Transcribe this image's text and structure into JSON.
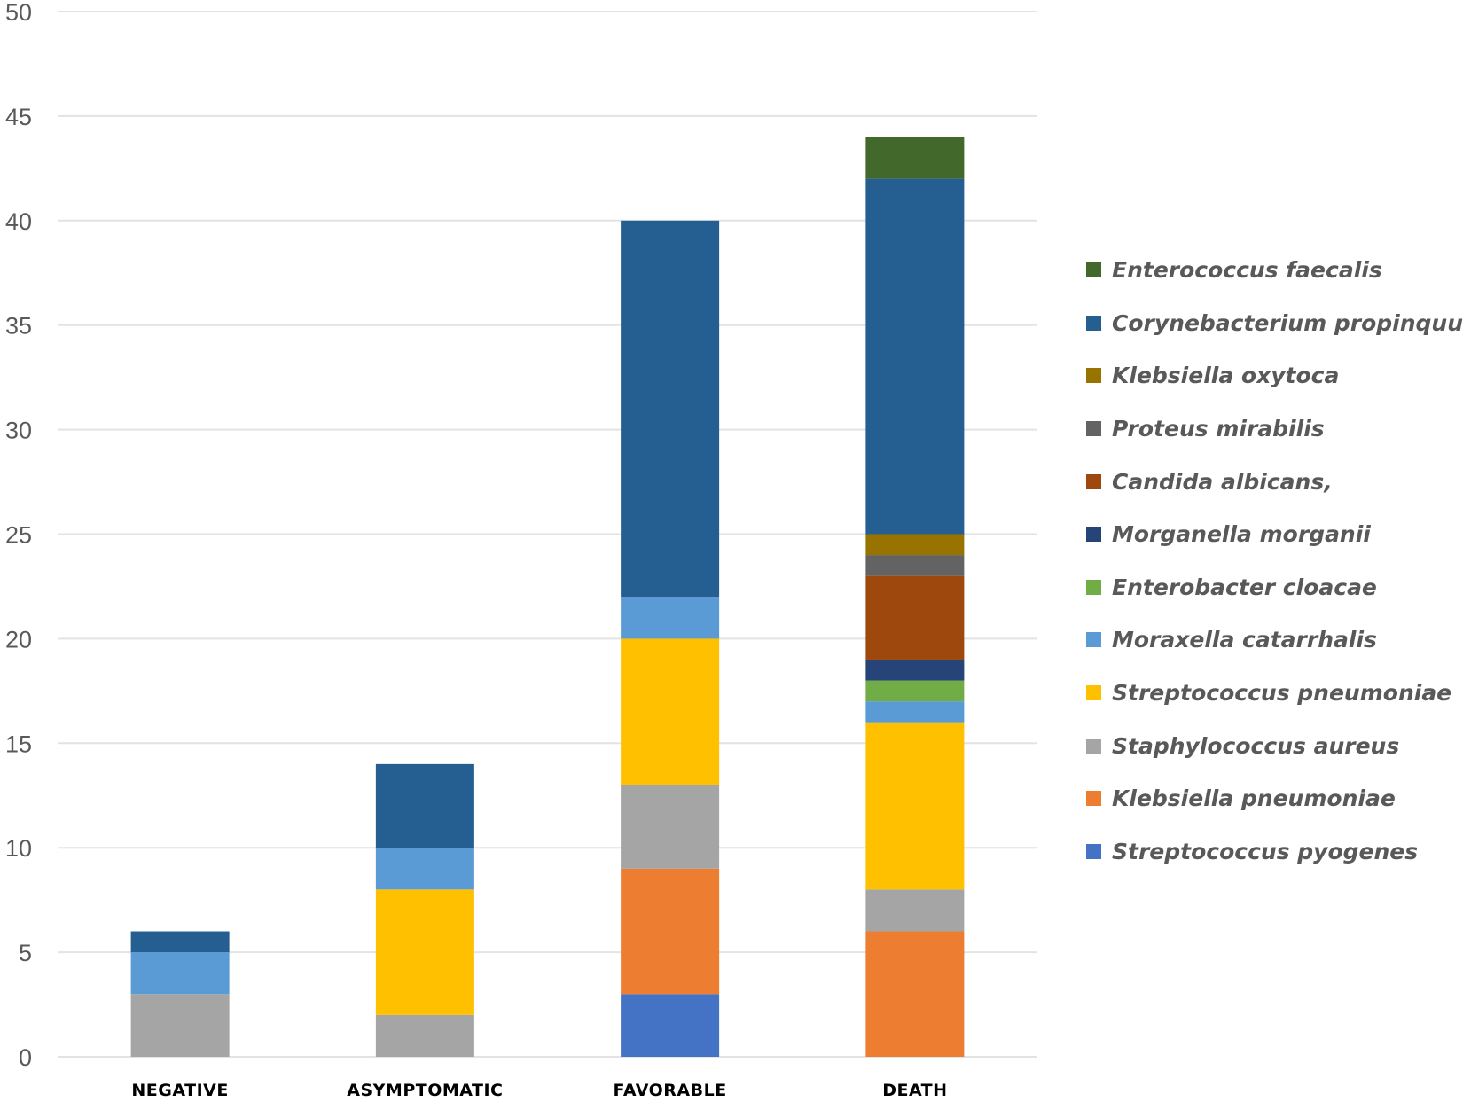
{
  "chart_data": {
    "type": "bar",
    "stacked": true,
    "title": "",
    "xlabel": "",
    "ylabel": "",
    "ylim": [
      0,
      50
    ],
    "yticks": [
      0,
      5,
      10,
      15,
      20,
      25,
      30,
      35,
      40,
      45,
      50
    ],
    "grid": true,
    "legend_position": "right",
    "categories": [
      "NEGATIVE",
      "ASYMPTOMATIC",
      "FAVORABLE",
      "DEATH"
    ],
    "series": [
      {
        "name": "Streptococcus pyogenes",
        "color": "#4472C4",
        "values": [
          0,
          0,
          3,
          0
        ]
      },
      {
        "name": "Klebsiella pneumoniae",
        "color": "#ED7D31",
        "values": [
          0,
          0,
          6,
          6
        ]
      },
      {
        "name": "Staphylococcus aureus",
        "color": "#A5A5A5",
        "values": [
          3,
          2,
          4,
          2
        ]
      },
      {
        "name": "Streptococcus pneumoniae",
        "color": "#FFC000",
        "values": [
          0,
          6,
          7,
          8
        ]
      },
      {
        "name": "Moraxella catarrhalis",
        "color": "#5B9BD5",
        "values": [
          2,
          2,
          2,
          1
        ]
      },
      {
        "name": "Enterobacter cloacae",
        "color": "#70AD47",
        "values": [
          0,
          0,
          0,
          1
        ]
      },
      {
        "name": "Morganella morganii",
        "color": "#264478",
        "values": [
          0,
          0,
          0,
          1
        ]
      },
      {
        "name": "Candida albicans,",
        "color": "#9E480E",
        "values": [
          0,
          0,
          0,
          4
        ]
      },
      {
        "name": "Proteus mirabilis",
        "color": "#636363",
        "values": [
          0,
          0,
          0,
          1
        ]
      },
      {
        "name": "Klebsiella oxytoca",
        "color": "#997300",
        "values": [
          0,
          0,
          0,
          1
        ]
      },
      {
        "name": "Corynebacterium propinquum",
        "color": "#255E91",
        "values": [
          1,
          4,
          18,
          17
        ]
      },
      {
        "name": "Enterococcus faecalis",
        "color": "#43682B",
        "values": [
          0,
          0,
          0,
          2
        ]
      }
    ]
  }
}
